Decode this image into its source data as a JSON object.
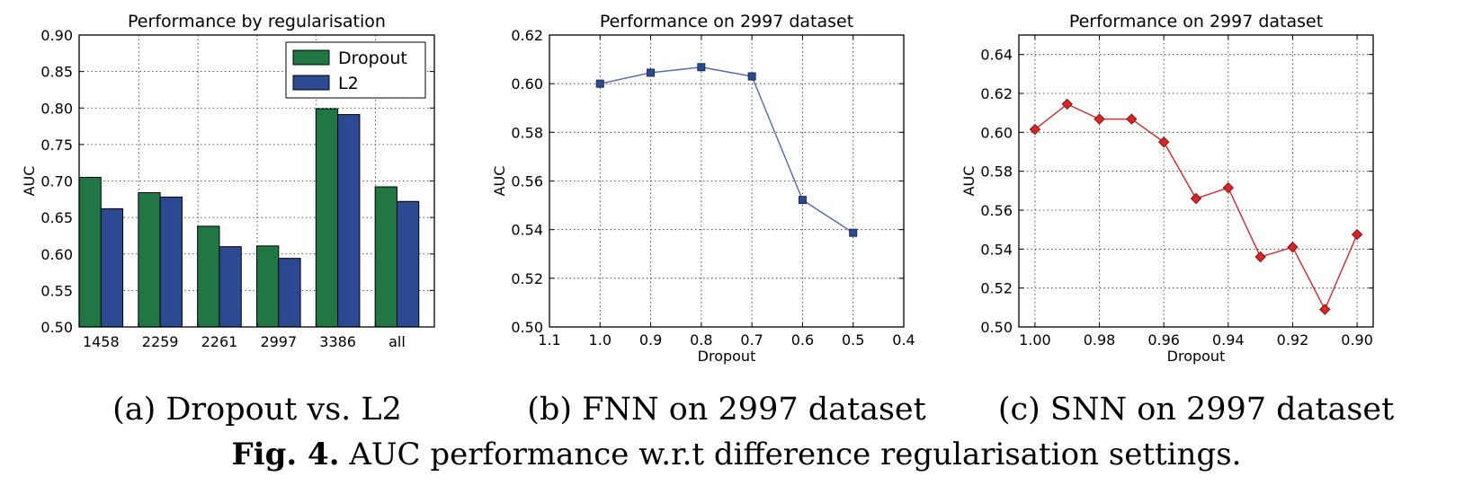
{
  "chart_data": [
    {
      "type": "bar",
      "title": "Performance by regularisation",
      "xlabel": "",
      "ylabel": "AUC",
      "ylim": [
        0.5,
        0.9
      ],
      "yticks": [
        "0.50",
        "0.55",
        "0.60",
        "0.65",
        "0.70",
        "0.75",
        "0.80",
        "0.85",
        "0.90"
      ],
      "categories": [
        "1458",
        "2259",
        "2261",
        "2997",
        "3386",
        "all"
      ],
      "series": [
        {
          "name": "Dropout",
          "color": "#207744",
          "values": [
            0.705,
            0.684,
            0.638,
            0.611,
            0.799,
            0.692
          ]
        },
        {
          "name": "L2",
          "color": "#2c4a92",
          "values": [
            0.662,
            0.678,
            0.61,
            0.594,
            0.791,
            0.672
          ]
        }
      ],
      "legend": "top-right",
      "grid": true
    },
    {
      "type": "line",
      "title": "Performance on 2997 dataset",
      "xlabel": "Dropout",
      "ylabel": "AUC",
      "xlim": [
        1.1,
        0.4
      ],
      "ylim": [
        0.5,
        0.62
      ],
      "xticks": [
        "1.1",
        "1.0",
        "0.9",
        "0.8",
        "0.7",
        "0.6",
        "0.5",
        "0.4"
      ],
      "yticks": [
        "0.50",
        "0.52",
        "0.54",
        "0.56",
        "0.58",
        "0.60",
        "0.62"
      ],
      "series": [
        {
          "color": "#4b6bab",
          "marker": "square",
          "x": [
            1.0,
            0.9,
            0.8,
            0.7,
            0.6,
            0.5
          ],
          "y": [
            0.6,
            0.6045,
            0.6068,
            0.603,
            0.5522,
            0.5387
          ]
        }
      ],
      "grid": true
    },
    {
      "type": "line",
      "title": "Performance on 2997 dataset",
      "xlabel": "Dropout",
      "ylabel": "AUC",
      "xlim": [
        1.005,
        0.895
      ],
      "ylim": [
        0.5,
        0.65
      ],
      "xticks": [
        "1.00",
        "0.98",
        "0.96",
        "0.94",
        "0.92",
        "0.90"
      ],
      "yticks": [
        "0.50",
        "0.52",
        "0.54",
        "0.56",
        "0.58",
        "0.60",
        "0.62",
        "0.64"
      ],
      "series": [
        {
          "color": "#d62728",
          "marker": "diamond",
          "x": [
            1.0,
            0.99,
            0.98,
            0.97,
            0.96,
            0.95,
            0.94,
            0.93,
            0.92,
            0.91,
            0.9
          ],
          "y": [
            0.6015,
            0.6145,
            0.6068,
            0.6068,
            0.595,
            0.566,
            0.5715,
            0.536,
            0.541,
            0.509,
            0.5475
          ]
        }
      ],
      "grid": true
    }
  ],
  "subcaptions": [
    "(a) Dropout vs. L2",
    "(b) FNN on 2997 dataset",
    "(c) SNN on 2997 dataset"
  ],
  "caption": {
    "label": "Fig. 4.",
    "text": "AUC performance w.r.t difference regularisation settings."
  }
}
